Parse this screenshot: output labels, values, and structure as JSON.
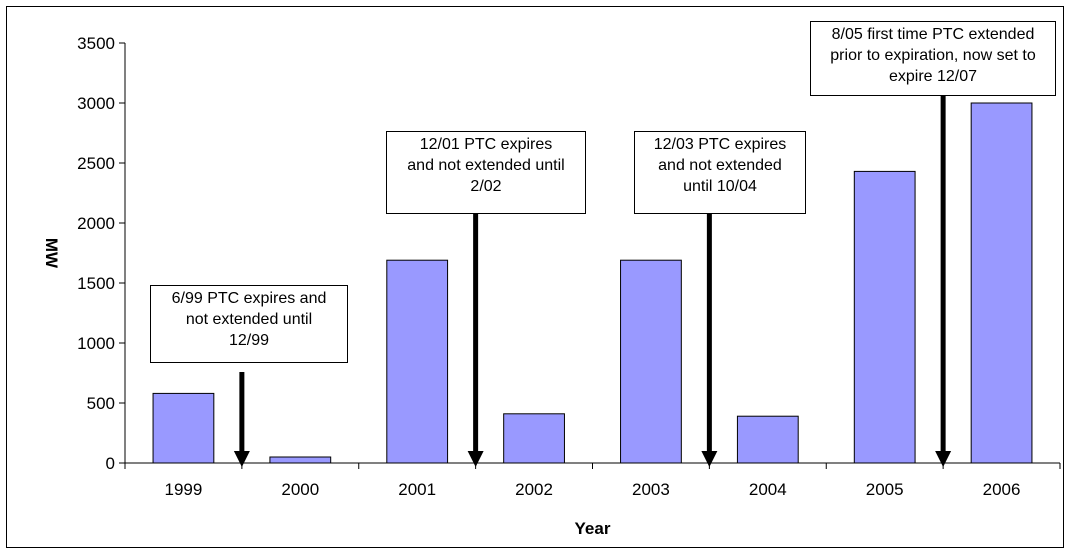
{
  "chart_data": {
    "type": "bar",
    "categories": [
      "1999",
      "2000",
      "2001",
      "2002",
      "2003",
      "2004",
      "2005",
      "2006"
    ],
    "series": [
      {
        "values": [
          580,
          50,
          1690,
          410,
          1690,
          390,
          2430,
          3000
        ]
      }
    ],
    "title": "",
    "xlabel": "Year",
    "ylabel": "MW",
    "ylim": [
      0,
      3500
    ],
    "yticks": [
      "0",
      "500",
      "1000",
      "1500",
      "2000",
      "2500",
      "3000",
      "3500"
    ],
    "grid": false,
    "legend": "none",
    "bar_color": "#9999ff",
    "annotations": [
      {
        "text": "6/99 PTC expires and\nnot extended until\n12/99",
        "after_category": "1999"
      },
      {
        "text": "12/01 PTC expires\nand not extended until\n2/02",
        "after_category": "2001"
      },
      {
        "text": "12/03 PTC expires\nand not extended\nuntil 10/04",
        "after_category": "2003"
      },
      {
        "text": "8/05 first time PTC extended\nprior to expiration, now set to\nexpire 12/07",
        "after_category": "2005"
      }
    ]
  }
}
